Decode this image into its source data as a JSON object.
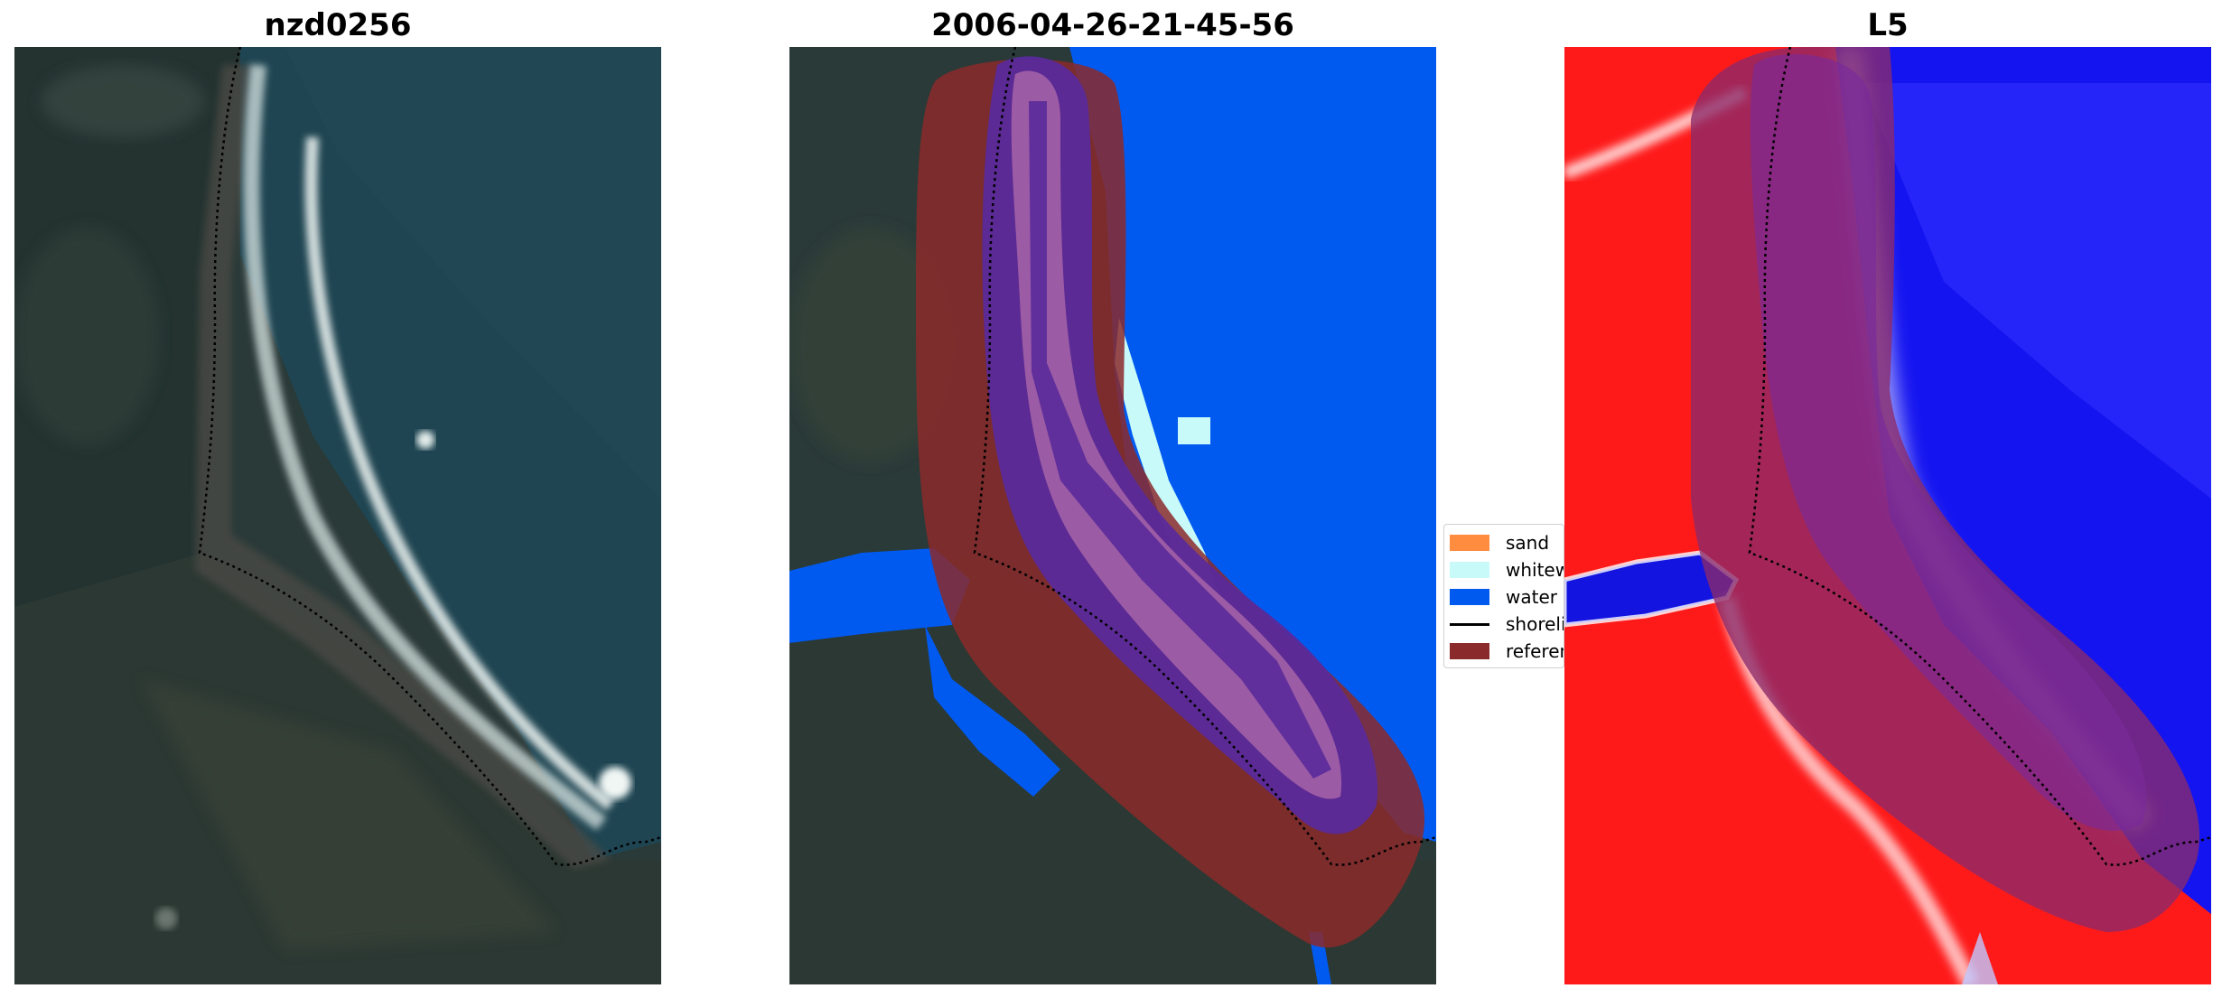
{
  "panels": [
    {
      "id": "satellite",
      "title": "nzd0256"
    },
    {
      "id": "classification",
      "title": "2006-04-26-21-45-56"
    },
    {
      "id": "index",
      "title": "L5"
    }
  ],
  "legend": {
    "items": [
      {
        "label": "sand",
        "color": "#ff8c3f",
        "kind": "patch"
      },
      {
        "label": "whitewater",
        "color": "#c8fafa",
        "kind": "patch"
      },
      {
        "label": "water",
        "color": "#005af0",
        "kind": "patch"
      },
      {
        "label": "shoreline",
        "color": "#000000",
        "kind": "line"
      },
      {
        "label": "reference",
        "color": "#8b2a2a",
        "kind": "patch"
      }
    ]
  }
}
